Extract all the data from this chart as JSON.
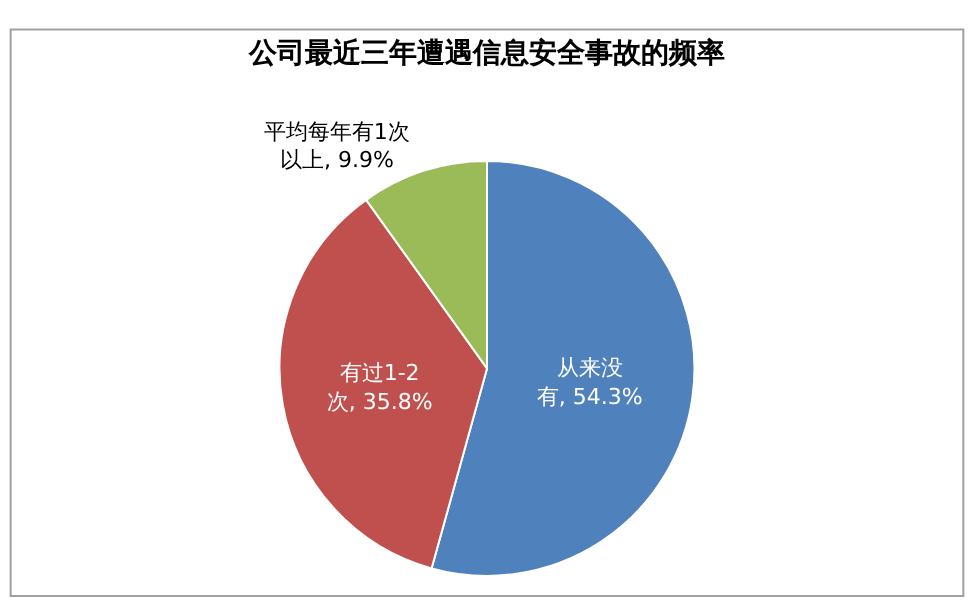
{
  "chart_data": {
    "type": "pie",
    "title": "公司最近三年遭遇信息安全事故的频率",
    "categories": [
      "从来没有",
      "有过1-2次",
      "平均每年有1次以上"
    ],
    "values": [
      54.3,
      35.8,
      9.9
    ],
    "colors": [
      "#4f81bd",
      "#c0504d",
      "#9bbb59"
    ],
    "value_labels": [
      "54.3%",
      "35.8%",
      "9.9%"
    ],
    "legend": false
  }
}
